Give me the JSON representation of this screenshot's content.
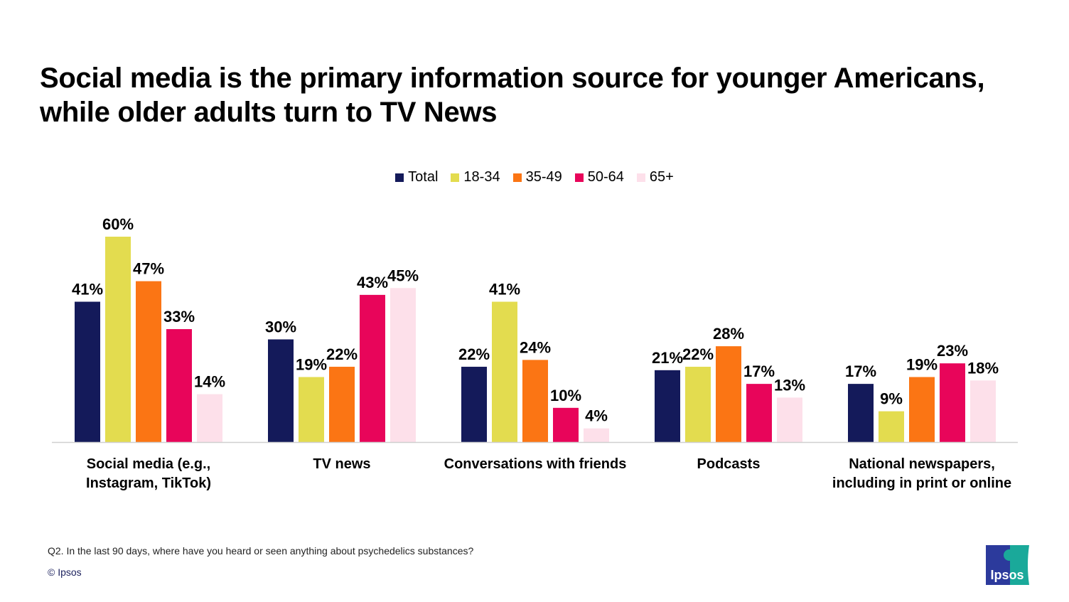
{
  "title": "Social media is the primary information source for younger Americans, while older adults turn to TV News",
  "chart_data": {
    "type": "bar",
    "categories": [
      "Social media (e.g., Instagram, TikTok)",
      "TV news",
      "Conversations with friends",
      "Podcasts",
      "National newspapers, including in print or online"
    ],
    "category_lines": [
      [
        "Social media (e.g.,",
        "Instagram, TikTok)"
      ],
      [
        "TV news"
      ],
      [
        "Conversations with friends"
      ],
      [
        "Podcasts"
      ],
      [
        "National newspapers,",
        "including in print or online"
      ]
    ],
    "series": [
      {
        "name": "Total",
        "color": "#141a5a",
        "values": [
          41,
          30,
          22,
          21,
          17
        ]
      },
      {
        "name": "18-34",
        "color": "#e3dc4f",
        "values": [
          60,
          19,
          41,
          22,
          9
        ]
      },
      {
        "name": "35-49",
        "color": "#fb7514",
        "values": [
          47,
          22,
          24,
          28,
          19
        ]
      },
      {
        "name": "50-64",
        "color": "#e8055a",
        "values": [
          33,
          43,
          10,
          17,
          23
        ]
      },
      {
        "name": "65+",
        "color": "#fde0ea",
        "values": [
          14,
          45,
          4,
          13,
          18
        ]
      }
    ],
    "value_suffix": "%",
    "ylim": [
      0,
      60
    ],
    "legend_position": "top",
    "grid": false
  },
  "footer": {
    "question": "Q2. In the last 90 days, where have you heard or seen anything about psychedelics substances?",
    "copyright": "© Ipsos",
    "logo_text": "Ipsos"
  }
}
